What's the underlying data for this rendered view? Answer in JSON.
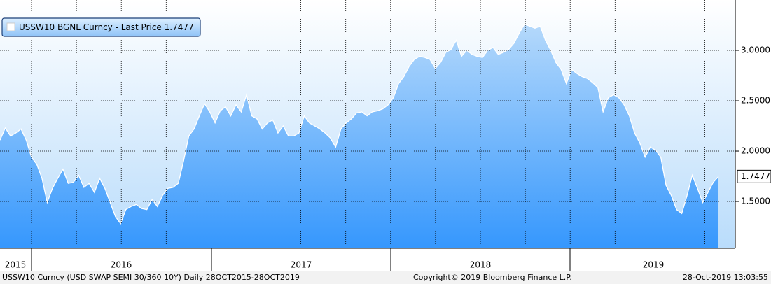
{
  "chart_data": {
    "type": "area",
    "series": [
      {
        "name": "USSW10 BGNL Curncy - Last Price 1.7477",
        "color": "#ffffff",
        "values": [
          2.11,
          2.23,
          2.15,
          2.18,
          2.22,
          2.11,
          1.94,
          1.87,
          1.73,
          1.49,
          1.63,
          1.73,
          1.82,
          1.68,
          1.69,
          1.76,
          1.64,
          1.68,
          1.59,
          1.73,
          1.63,
          1.49,
          1.35,
          1.28,
          1.42,
          1.45,
          1.47,
          1.43,
          1.42,
          1.52,
          1.45,
          1.56,
          1.63,
          1.64,
          1.68,
          1.9,
          2.15,
          2.22,
          2.35,
          2.47,
          2.39,
          2.28,
          2.4,
          2.44,
          2.35,
          2.46,
          2.39,
          2.56,
          2.35,
          2.32,
          2.22,
          2.28,
          2.31,
          2.18,
          2.25,
          2.15,
          2.15,
          2.18,
          2.35,
          2.28,
          2.25,
          2.22,
          2.18,
          2.13,
          2.04,
          2.22,
          2.28,
          2.32,
          2.38,
          2.39,
          2.35,
          2.39,
          2.4,
          2.42,
          2.46,
          2.53,
          2.67,
          2.74,
          2.84,
          2.91,
          2.94,
          2.93,
          2.91,
          2.82,
          2.88,
          2.98,
          3.01,
          3.1,
          2.94,
          3.0,
          2.96,
          2.94,
          2.93,
          3.0,
          3.03,
          2.96,
          2.98,
          3.01,
          3.07,
          3.17,
          3.26,
          3.24,
          3.22,
          3.24,
          3.1,
          3.0,
          2.88,
          2.81,
          2.67,
          2.81,
          2.77,
          2.74,
          2.72,
          2.68,
          2.63,
          2.39,
          2.53,
          2.56,
          2.53,
          2.46,
          2.35,
          2.18,
          2.08,
          1.94,
          2.04,
          2.01,
          1.94,
          1.66,
          1.56,
          1.42,
          1.38,
          1.56,
          1.76,
          1.63,
          1.49,
          1.59,
          1.69,
          1.7477
        ]
      }
    ],
    "x_labels": [
      "2015",
      "2016",
      "2017",
      "2018",
      "2019"
    ],
    "ylim": [
      1.035,
      3.5
    ],
    "yticks": [
      {
        "value": 1.5,
        "label": "1.5000"
      },
      {
        "value": 2,
        "label": "2.0000"
      },
      {
        "value": 2.5,
        "label": "2.5000"
      },
      {
        "value": 3,
        "label": "3.0000"
      }
    ],
    "grid": true,
    "legend": "top-left",
    "footer_left": "USSW10 Curncy (USD SWAP SEMI 30/360 10Y)  Daily 28OCT2015-28OCT2019",
    "footer_center": "Copyright© 2019 Bloomberg Finance L.P.",
    "footer_right": "28-Oct-2019 13:03:55"
  }
}
